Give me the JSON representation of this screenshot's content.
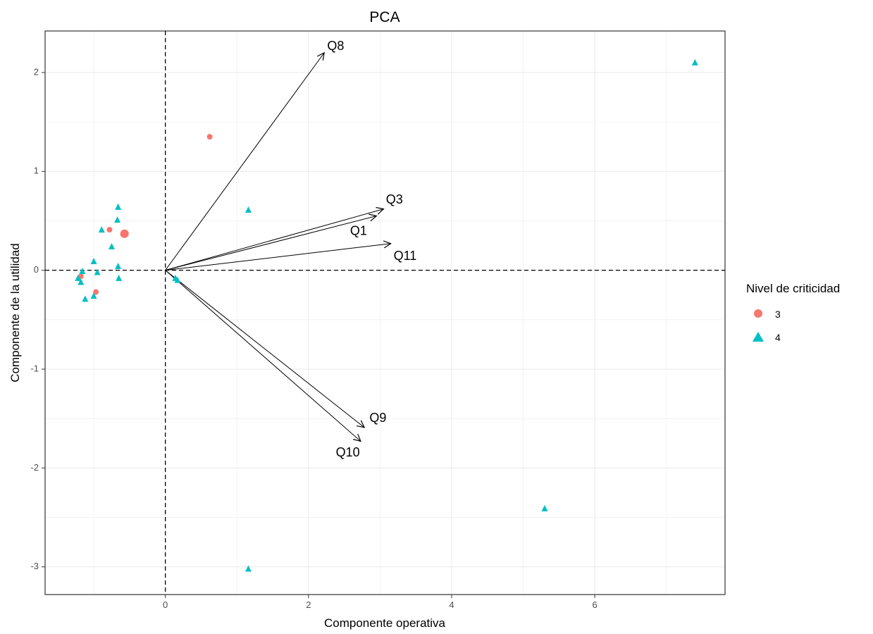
{
  "chart_data": {
    "type": "scatter",
    "title": "PCA",
    "xlabel": "Componente operativa",
    "ylabel": "Componente de la utilidad",
    "xlim": [
      -1.68,
      7.82
    ],
    "ylim": [
      -3.28,
      2.42
    ],
    "x_ticks": [
      0,
      2,
      4,
      6
    ],
    "y_ticks": [
      -3,
      -2,
      -1,
      0,
      1,
      2
    ],
    "x_tick_labels": [
      "0",
      "2",
      "4",
      "6"
    ],
    "y_tick_labels": [
      "-3",
      "-2",
      "-1",
      "0",
      "1",
      "2"
    ],
    "grid": true,
    "reference_lines": {
      "x": 0,
      "y": 0,
      "style": "dashed"
    },
    "legend": {
      "title": "Nivel de criticidad",
      "position": "right",
      "entries": [
        {
          "label": "3",
          "color": "#F8766D",
          "shape": "circle"
        },
        {
          "label": "4",
          "color": "#00BFC4",
          "shape": "triangle"
        }
      ]
    },
    "series": [
      {
        "name": "3",
        "color": "#F8766D",
        "shape": "circle",
        "points": [
          {
            "x": 0.62,
            "y": 1.35,
            "size": 1
          },
          {
            "x": -0.78,
            "y": 0.41,
            "size": 1
          },
          {
            "x": -0.57,
            "y": 0.37,
            "size": 2
          },
          {
            "x": -0.59,
            "y": 0.36,
            "size": 1
          },
          {
            "x": -1.18,
            "y": -0.06,
            "size": 1
          },
          {
            "x": -0.97,
            "y": -0.22,
            "size": 1
          }
        ]
      },
      {
        "name": "4",
        "color": "#00BFC4",
        "shape": "triangle",
        "points": [
          {
            "x": 7.4,
            "y": 2.1
          },
          {
            "x": 1.16,
            "y": 0.61
          },
          {
            "x": -0.66,
            "y": 0.64
          },
          {
            "x": -0.67,
            "y": 0.51
          },
          {
            "x": -0.89,
            "y": 0.41
          },
          {
            "x": -0.75,
            "y": 0.24
          },
          {
            "x": -1.0,
            "y": 0.09
          },
          {
            "x": -0.66,
            "y": 0.04
          },
          {
            "x": -1.16,
            "y": -0.01
          },
          {
            "x": -0.95,
            "y": -0.02
          },
          {
            "x": -1.22,
            "y": -0.08
          },
          {
            "x": -0.65,
            "y": -0.08
          },
          {
            "x": -1.18,
            "y": -0.12
          },
          {
            "x": -1.0,
            "y": -0.26
          },
          {
            "x": -1.12,
            "y": -0.29
          },
          {
            "x": 0.14,
            "y": -0.08
          },
          {
            "x": 0.17,
            "y": -0.1
          },
          {
            "x": 5.3,
            "y": -2.41
          },
          {
            "x": 1.16,
            "y": -3.02
          }
        ]
      }
    ],
    "arrows": [
      {
        "label": "Q8",
        "x": 2.22,
        "y": 2.2,
        "label_x": 2.38,
        "label_y": 2.26
      },
      {
        "label": "Q3",
        "x": 3.05,
        "y": 0.62,
        "label_x": 3.2,
        "label_y": 0.71
      },
      {
        "label": "Q1",
        "x": 2.95,
        "y": 0.55,
        "label_x": 2.7,
        "label_y": 0.39
      },
      {
        "label": "Q11",
        "x": 3.15,
        "y": 0.27,
        "label_x": 3.35,
        "label_y": 0.14
      },
      {
        "label": "Q9",
        "x": 2.78,
        "y": -1.59,
        "label_x": 2.97,
        "label_y": -1.5
      },
      {
        "label": "Q10",
        "x": 2.73,
        "y": -1.73,
        "label_x": 2.55,
        "label_y": -1.85
      }
    ]
  }
}
